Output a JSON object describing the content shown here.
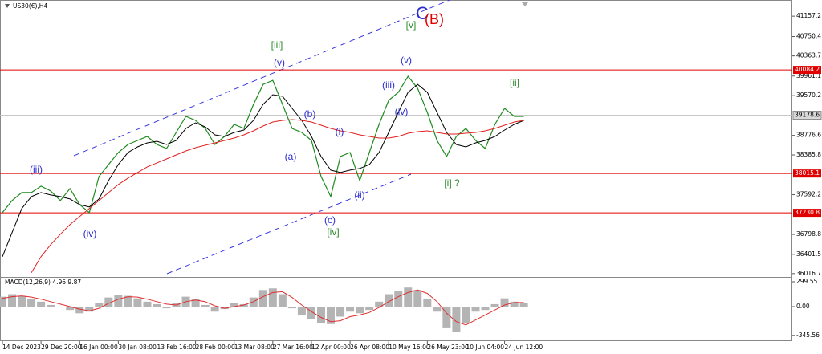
{
  "chart_data": [
    {
      "type": "line",
      "title": "US30(€),H4",
      "categories": [
        "14 Dec 2023",
        null,
        null,
        null,
        "29 Dec 20:00",
        null,
        null,
        null,
        "16 Jan 00:00",
        null,
        null,
        null,
        "30 Jan 08:00",
        null,
        null,
        null,
        "13 Feb 16:00",
        null,
        null,
        null,
        "28 Feb 00:00",
        null,
        null,
        null,
        "13 Mar 08:00",
        null,
        null,
        null,
        "27 Mar 16:00",
        null,
        null,
        null,
        "12 Apr 00:00",
        null,
        null,
        null,
        "26 Apr 08:00",
        null,
        null,
        null,
        "10 May 16:00",
        null,
        null,
        null,
        "26 May 23:00",
        null,
        null,
        null,
        "10 Jun 04:00",
        null,
        null,
        null,
        "24 Jun 12:00",
        null,
        null
      ],
      "series": [
        {
          "color": "#1f8a1f",
          "values": [
            37235,
            37475,
            37635,
            37635,
            37763,
            37667,
            37475,
            37715,
            37395,
            37235,
            37955,
            38195,
            38435,
            38595,
            38675,
            38755,
            38595,
            38515,
            38835,
            39156,
            39076,
            38916,
            38595,
            38755,
            38996,
            38916,
            39396,
            39796,
            39876,
            39396,
            38916,
            38835,
            38675,
            37955,
            37555,
            38355,
            38435,
            37875,
            38435,
            38996,
            39476,
            39636,
            39956,
            39716,
            39236,
            38675,
            38355,
            38755,
            38916,
            38675,
            38515,
            38996,
            39316,
            39156,
            39156
          ]
        },
        {
          "color": "#000000",
          "values": [
            36354,
            36834,
            37315,
            37555,
            37635,
            37587,
            37555,
            37507,
            37395,
            37347,
            37507,
            37875,
            38195,
            38435,
            38547,
            38627,
            38659,
            38595,
            38675,
            38916,
            39028,
            38948,
            38787,
            38755,
            38835,
            38883,
            39076,
            39396,
            39588,
            39556,
            39316,
            39076,
            38755,
            38355,
            38083,
            38035,
            38083,
            38115,
            38195,
            38435,
            38835,
            39236,
            39636,
            39796,
            39636,
            39236,
            38835,
            38595,
            38547,
            38627,
            38675,
            38755,
            38883,
            38996,
            39076
          ]
        },
        {
          "color": "#e02020",
          "values": [
            null,
            null,
            null,
            36034,
            36354,
            36594,
            36802,
            36995,
            37155,
            37315,
            37475,
            37635,
            37795,
            37923,
            38035,
            38147,
            38227,
            38307,
            38387,
            38467,
            38531,
            38579,
            38627,
            38675,
            38723,
            38787,
            38867,
            38964,
            39044,
            39076,
            39092,
            39076,
            39044,
            38980,
            38916,
            38867,
            38835,
            38787,
            38755,
            38723,
            38723,
            38755,
            38819,
            38851,
            38867,
            38835,
            38803,
            38803,
            38819,
            38835,
            38867,
            38916,
            38980,
            39044,
            39076
          ]
        }
      ],
      "ylim": [
        35950,
        41480
      ],
      "yticks": [
        41157.2,
        40750.4,
        40363.7,
        39961.1,
        39570.2,
        38776.6,
        38385.8,
        37592.2,
        36798.8,
        36401.5,
        36016.7
      ],
      "levels": [
        {
          "value": 40084.2,
          "color": "#e00000"
        },
        {
          "value": 38015.1,
          "color": "#e00000"
        },
        {
          "value": 37230.8,
          "color": "#e00000"
        }
      ],
      "last_price": 39178.6,
      "annotations": [
        {
          "text": "(iii)",
          "color": "#2b2bd0"
        },
        {
          "text": "(iv)",
          "color": "#2b2bd0"
        },
        {
          "text": "[iii]",
          "color": "#2e8b2e"
        },
        {
          "text": "(v)",
          "color": "#2b2bd0"
        },
        {
          "text": "(b)",
          "color": "#2b2bd0"
        },
        {
          "text": "(a)",
          "color": "#2b2bd0"
        },
        {
          "text": "(i)",
          "color": "#2b2bd0"
        },
        {
          "text": "(ii)",
          "color": "#2b2bd0"
        },
        {
          "text": "(c)",
          "color": "#2b2bd0"
        },
        {
          "text": "[iv]",
          "color": "#2e8b2e"
        },
        {
          "text": "(iii)",
          "color": "#2b2bd0"
        },
        {
          "text": "(iv)",
          "color": "#2b2bd0"
        },
        {
          "text": "(v)",
          "color": "#2b2bd0"
        },
        {
          "text": "[v]",
          "color": "#2e8b2e"
        },
        {
          "text": "C",
          "color": "#2b2bd0"
        },
        {
          "text": "(B)",
          "color": "#e00000"
        },
        {
          "text": "[i] ?",
          "color": "#2e8b2e"
        },
        {
          "text": "[ii]",
          "color": "#2e8b2e"
        }
      ]
    },
    {
      "type": "bar",
      "title": "MACD(12,26,9) 4.96 9.87",
      "series": [
        {
          "type": "bar",
          "color": "#b4b4b4",
          "values": [
            120,
            150,
            130,
            90,
            60,
            20,
            -10,
            -40,
            -80,
            -60,
            40,
            110,
            140,
            130,
            100,
            60,
            30,
            -20,
            40,
            120,
            90,
            20,
            -60,
            -30,
            40,
            30,
            110,
            200,
            220,
            150,
            -20,
            -100,
            -150,
            -200,
            -210,
            -120,
            -60,
            -80,
            -40,
            60,
            150,
            190,
            230,
            200,
            90,
            -60,
            -250,
            -300,
            -200,
            -60,
            -40,
            30,
            100,
            60,
            40
          ]
        },
        {
          "type": "line",
          "color": "#e03030",
          "values": [
            100,
            120,
            130,
            115,
            90,
            60,
            30,
            0,
            -30,
            -50,
            -20,
            40,
            90,
            120,
            115,
            90,
            60,
            30,
            20,
            60,
            80,
            60,
            10,
            -20,
            0,
            20,
            60,
            120,
            170,
            180,
            110,
            20,
            -60,
            -130,
            -180,
            -170,
            -120,
            -100,
            -70,
            -10,
            60,
            120,
            170,
            200,
            160,
            60,
            -80,
            -180,
            -220,
            -160,
            -100,
            -40,
            20,
            50,
            50
          ]
        }
      ],
      "ylim": [
        -415,
        348
      ],
      "yticks": [
        299.55,
        {
          "value": 0,
          "label": "0.00"
        },
        -345.56
      ]
    }
  ]
}
